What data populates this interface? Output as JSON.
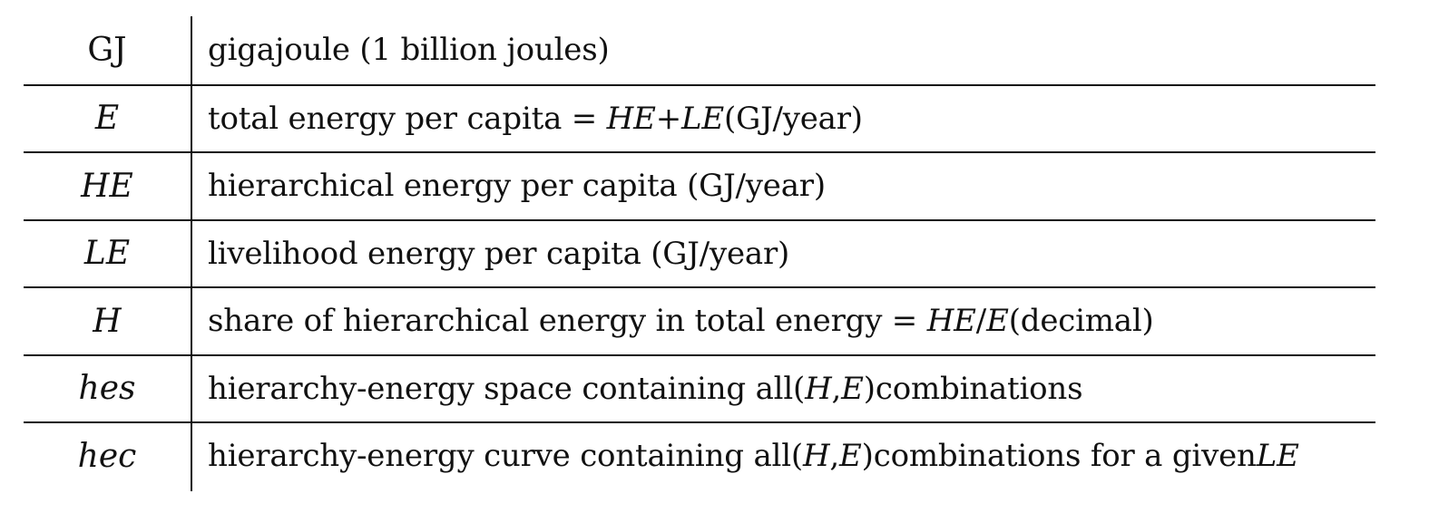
{
  "rows": [
    {
      "symbol": "GJ",
      "parts": [
        "gigajoule (1 billion joules)"
      ]
    },
    {
      "symbol": "E",
      "parts": [
        "total energy per capita = ",
        "HE",
        " + ",
        "LE",
        " (GJ/year)"
      ]
    },
    {
      "symbol": "HE",
      "parts": [
        "hierarchical energy per capita (GJ/year)"
      ]
    },
    {
      "symbol": "LE",
      "parts": [
        "livelihood energy per capita (GJ/year)"
      ]
    },
    {
      "symbol": "H",
      "parts": [
        "share of hierarchical energy in total energy = ",
        "HE",
        "/",
        "E",
        " (decimal)"
      ]
    },
    {
      "symbol": "hes",
      "parts": [
        "hierarchy-energy space containing all ",
        "(",
        "H",
        ", ",
        "E",
        ")",
        " combinations"
      ]
    },
    {
      "symbol": "hec",
      "parts": [
        "hierarchy-energy curve containing all ",
        "(",
        "H",
        ", ",
        "E",
        ")",
        " combinations for a given ",
        "LE"
      ]
    }
  ]
}
